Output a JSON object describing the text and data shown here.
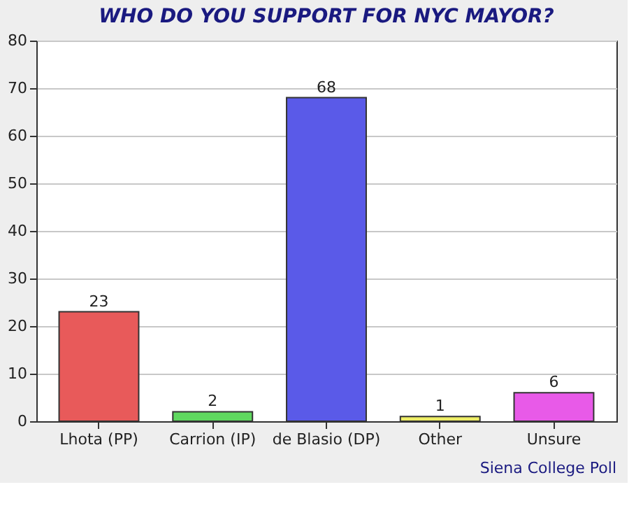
{
  "chart_data": {
    "type": "bar",
    "title": "WHO DO YOU SUPPORT FOR NYC MAYOR?",
    "categories": [
      "Lhota (PP)",
      "Carrion (IP)",
      "de Blasio (DP)",
      "Other",
      "Unsure"
    ],
    "values": [
      23,
      2,
      68,
      1,
      6
    ],
    "colors": [
      "#e85a5a",
      "#5fd85f",
      "#5a5ae8",
      "#eeee66",
      "#e85ae8"
    ],
    "ylim": [
      0,
      80
    ],
    "yticks": [
      0,
      10,
      20,
      30,
      40,
      50,
      60,
      70,
      80
    ],
    "grid": "y",
    "data_labels": true,
    "annotations": [
      "Siena College Poll"
    ]
  }
}
